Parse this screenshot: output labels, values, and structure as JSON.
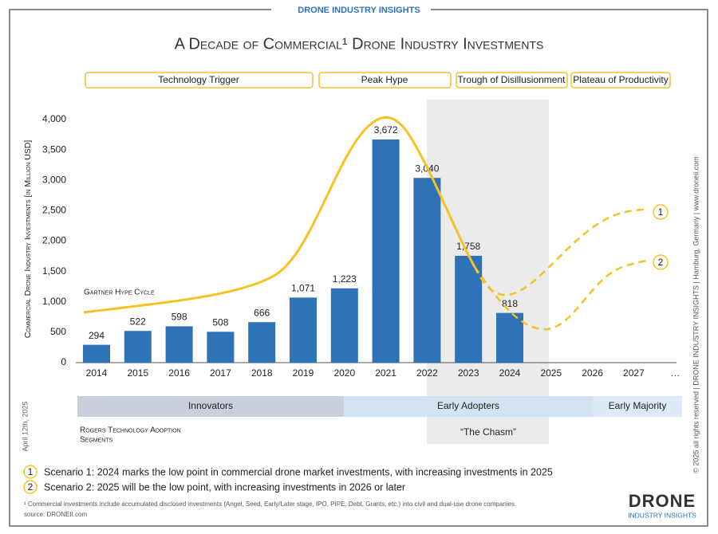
{
  "header": "DRONE INDUSTRY INSIGHTS",
  "chart_data": {
    "type": "bar",
    "title": "A Decade of Commercial¹ Drone Industry Investments",
    "y_label": "Commercial Drone Industry Investments [in Million USD]",
    "categories": [
      "2014",
      "2015",
      "2016",
      "2017",
      "2018",
      "2019",
      "2020",
      "2021",
      "2022",
      "2023",
      "2024",
      "2025",
      "2026",
      "2027",
      "…"
    ],
    "values": [
      294,
      522,
      598,
      508,
      666,
      1071,
      1223,
      3672,
      3040,
      1758,
      818,
      null,
      null,
      null,
      null
    ],
    "value_labels": [
      "294",
      "522",
      "598",
      "508",
      "666",
      "1,071",
      "1,223",
      "3,672",
      "3,040",
      "1,758",
      "818",
      null,
      null,
      null,
      null
    ],
    "color": "#2e73b8",
    "ylim": [
      0,
      4000
    ],
    "yticks": [
      0,
      500,
      {
        "value": 1000,
        "label": "1,000"
      },
      {
        "value": 1500,
        "label": "1,500"
      },
      {
        "value": 2000,
        "label": "2,000"
      },
      {
        "value": 2500,
        "label": "2,500"
      },
      {
        "value": 3000,
        "label": "3,000"
      },
      {
        "value": 3500,
        "label": "3,500"
      },
      {
        "value": 4000,
        "label": "4,000"
      }
    ],
    "grid": false
  },
  "phases": [
    "Technology Trigger",
    "Peak Hype",
    "Trough of Disillusionment",
    "Plateau of Productivity"
  ],
  "hype_label": "Gartner Hype Cycle",
  "segments": [
    "Innovators",
    "Early Adopters",
    "Early Majority"
  ],
  "rogers_label": [
    "Rogers Technology Adoption",
    "Segments"
  ],
  "chasm_label": "“The Chasm”",
  "scenarios": [
    {
      "number": "1",
      "text": "Scenario 1: 2024 marks the low point in commercial drone market investments, with increasing investments in 2025"
    },
    {
      "number": "2",
      "text": "Scenario 2: 2025 will be the low point, with increasing investments in 2026 or later"
    }
  ],
  "footnote": "¹ Commercial investments include accumulated disclosed investments (Angel, Seed, Early/Later stage, IPO, PIPE, Debt, Grants, etc.) into civil and dual-use drone companies.",
  "source": "source: DRONEII.com",
  "date": "April 12th, 2025",
  "copyright": "© 2025 all rights reserved  |  DRONE INDUSTRY INSIGHTS  |  Hamburg, Germany  |  www.droneii.com",
  "logo": [
    "DRONE",
    "INDUSTRY INSIGHTS"
  ]
}
